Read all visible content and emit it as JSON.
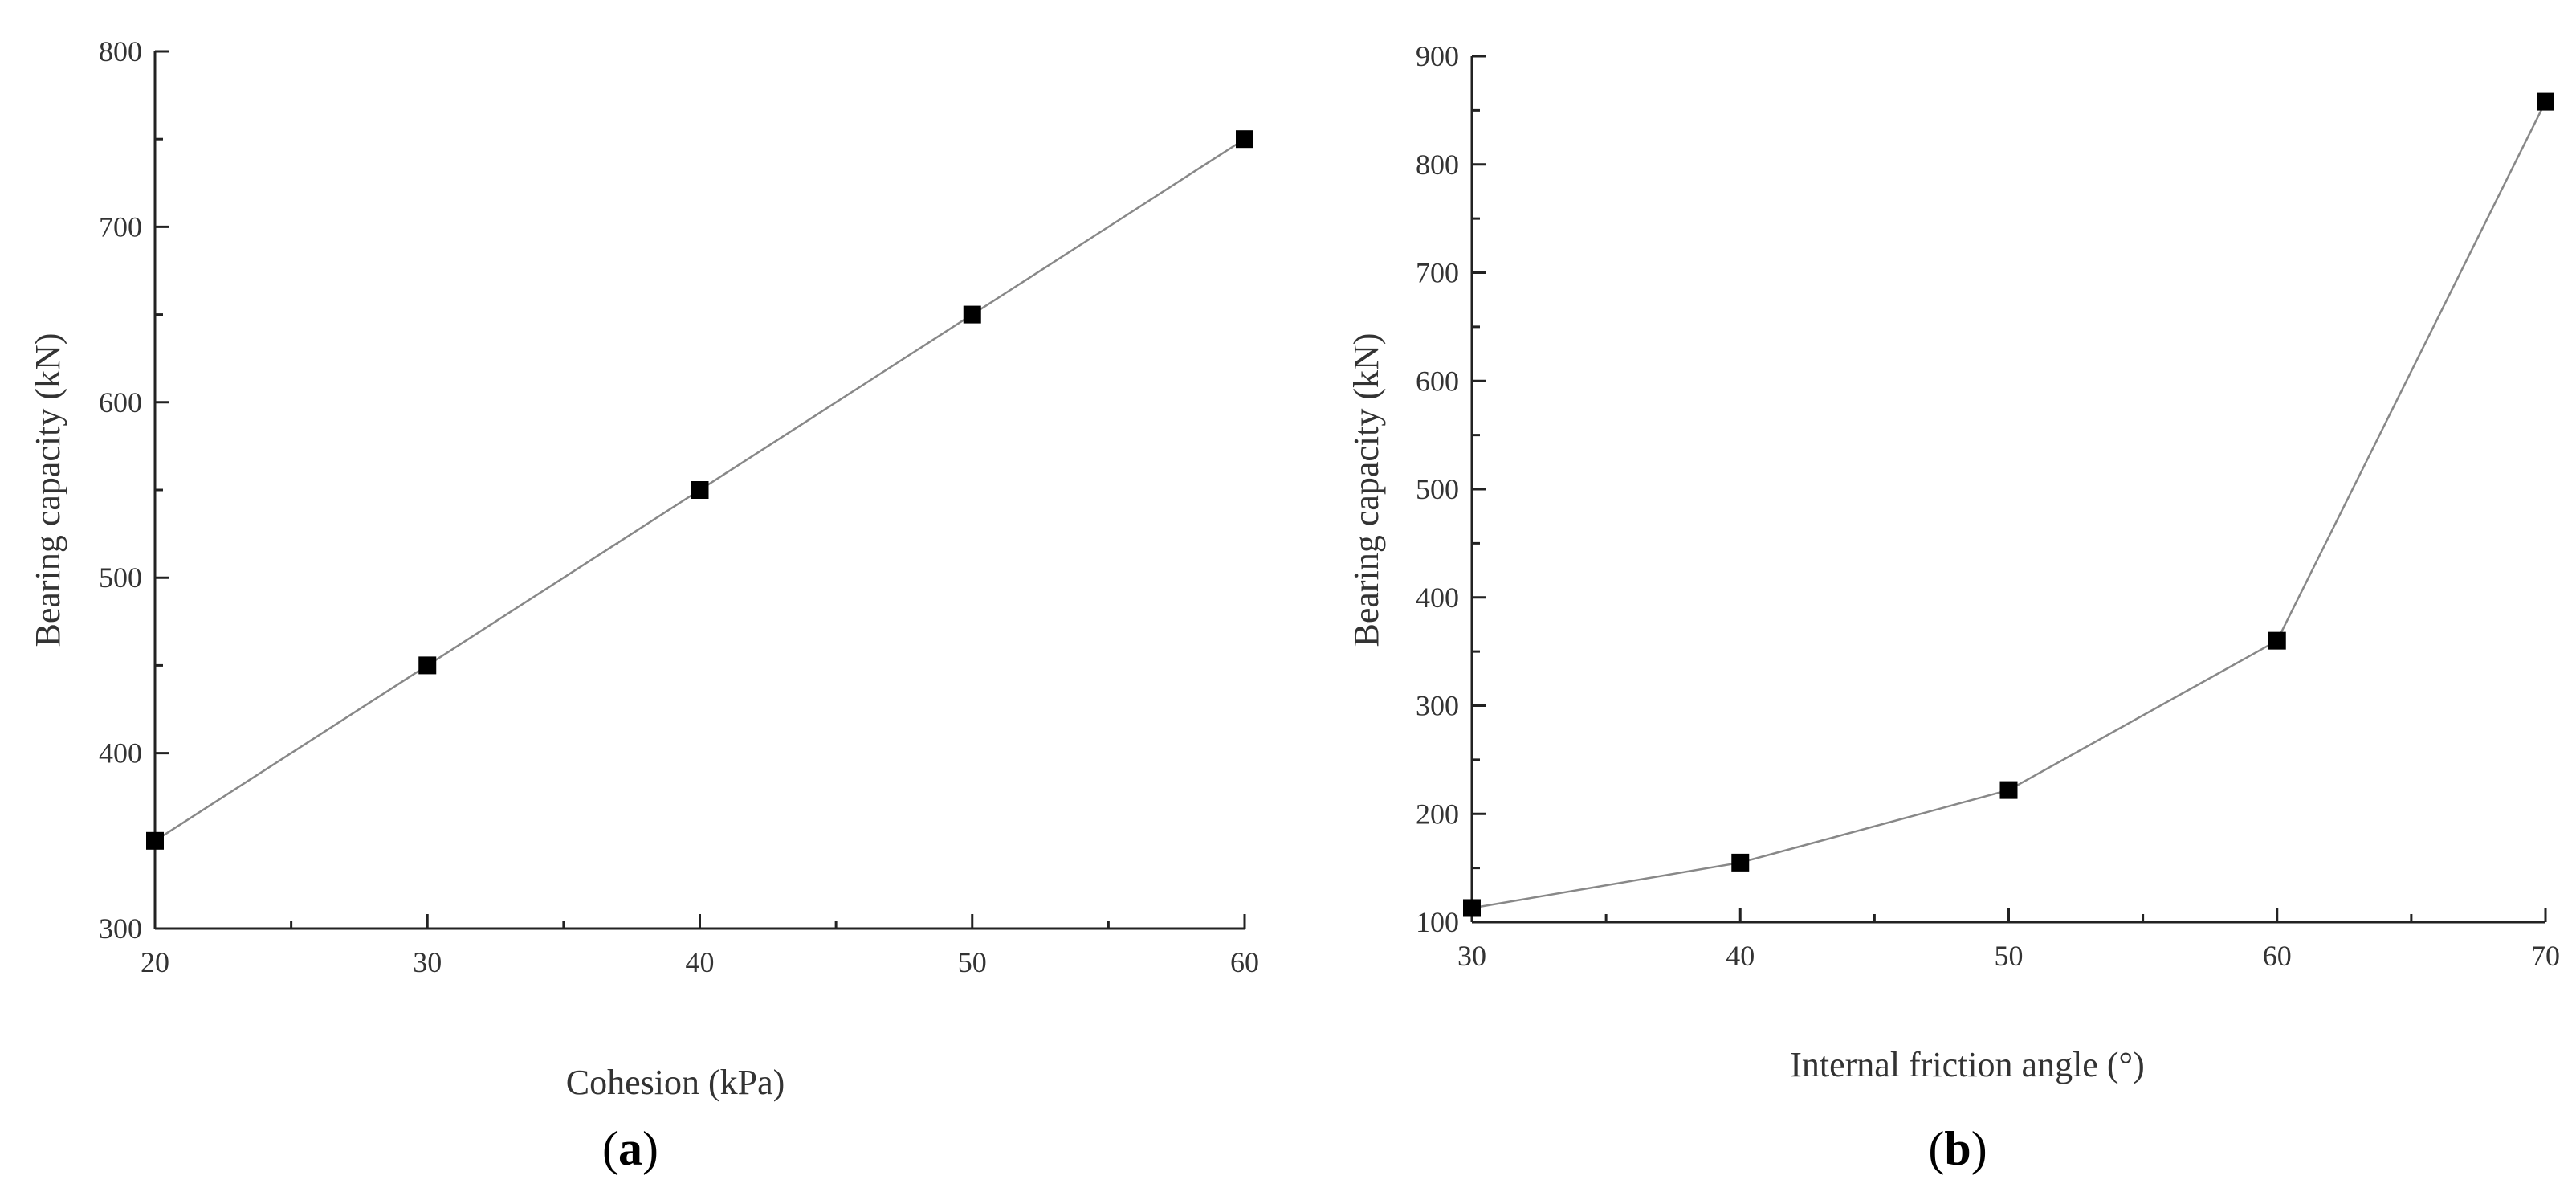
{
  "chart_data": [
    {
      "type": "line",
      "panel_label": "a",
      "title": "",
      "xlabel": "Cohesion (kPa)",
      "ylabel": "Bearing capacity (kN)",
      "x": [
        20,
        30,
        40,
        50,
        60
      ],
      "series": [
        {
          "name": "Bearing capacity",
          "values": [
            350,
            450,
            550,
            650,
            750
          ]
        }
      ],
      "xlim": [
        20,
        60
      ],
      "ylim": [
        300,
        800
      ],
      "xticks": [
        20,
        30,
        40,
        50,
        60
      ],
      "yticks": [
        300,
        400,
        500,
        600,
        700,
        800
      ],
      "marker": "square",
      "grid": false
    },
    {
      "type": "line",
      "panel_label": "b",
      "title": "",
      "xlabel": "Internal friction angle (°)",
      "ylabel": "Bearing capacity (kN)",
      "x": [
        30,
        40,
        50,
        60,
        70
      ],
      "series": [
        {
          "name": "Bearing capacity",
          "values": [
            113,
            155,
            222,
            360,
            858
          ]
        }
      ],
      "xlim": [
        30,
        70
      ],
      "ylim": [
        100,
        900
      ],
      "xticks": [
        30,
        40,
        50,
        60,
        70
      ],
      "yticks": [
        100,
        200,
        300,
        400,
        500,
        600,
        700,
        800,
        900
      ],
      "marker": "square",
      "grid": false
    }
  ]
}
